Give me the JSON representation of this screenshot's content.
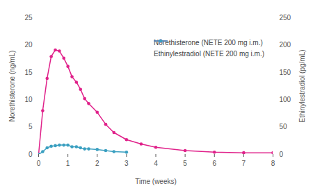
{
  "chart_data": {
    "type": "line",
    "x": [
      0,
      0.14,
      0.29,
      0.43,
      0.57,
      0.71,
      0.86,
      1,
      1.14,
      1.29,
      1.43,
      1.57,
      1.71,
      2,
      2.29,
      2.57,
      3,
      3.5,
      4,
      5,
      6,
      7,
      8
    ],
    "series": [
      {
        "name": "Norethisterone (NETE 200 mg i.m.)",
        "color": "#e0218a",
        "marker": "circle",
        "line_style": "solid",
        "values": [
          0,
          8,
          13.9,
          17.9,
          19.1,
          18.9,
          17.6,
          16.1,
          14.2,
          13.2,
          11.9,
          10.2,
          9.3,
          7.7,
          5.5,
          4.0,
          2.7,
          1.9,
          1.3,
          0.7,
          0.4,
          0.3,
          0.3
        ]
      },
      {
        "name": "Ethinylestradiol (NETE 200 mg i.m.)",
        "color": "#3a9fc0",
        "marker": "circle",
        "line_style": "solid",
        "axis": "y2",
        "values": [
          0,
          5,
          12,
          15,
          16,
          17,
          17,
          17,
          14,
          14,
          12,
          10,
          10,
          9,
          7,
          5,
          4,
          null,
          null,
          null,
          null,
          null,
          null
        ]
      }
    ],
    "x_label": "Time (weeks)",
    "y_label": "Norethisterone (ng/mL)",
    "y2_label": "Ethinylestradiol (pg/mL)",
    "xlim": [
      0,
      8
    ],
    "xticks": [
      0,
      1,
      2,
      3,
      4,
      5,
      6,
      7,
      8
    ],
    "ylim": [
      0,
      25
    ],
    "yticks": [
      0,
      5,
      10,
      15,
      20,
      25
    ],
    "y2lim": [
      0,
      250
    ],
    "y2ticks": [
      0,
      50,
      100,
      150,
      200,
      250
    ],
    "grid": false,
    "legend": "upper right"
  }
}
